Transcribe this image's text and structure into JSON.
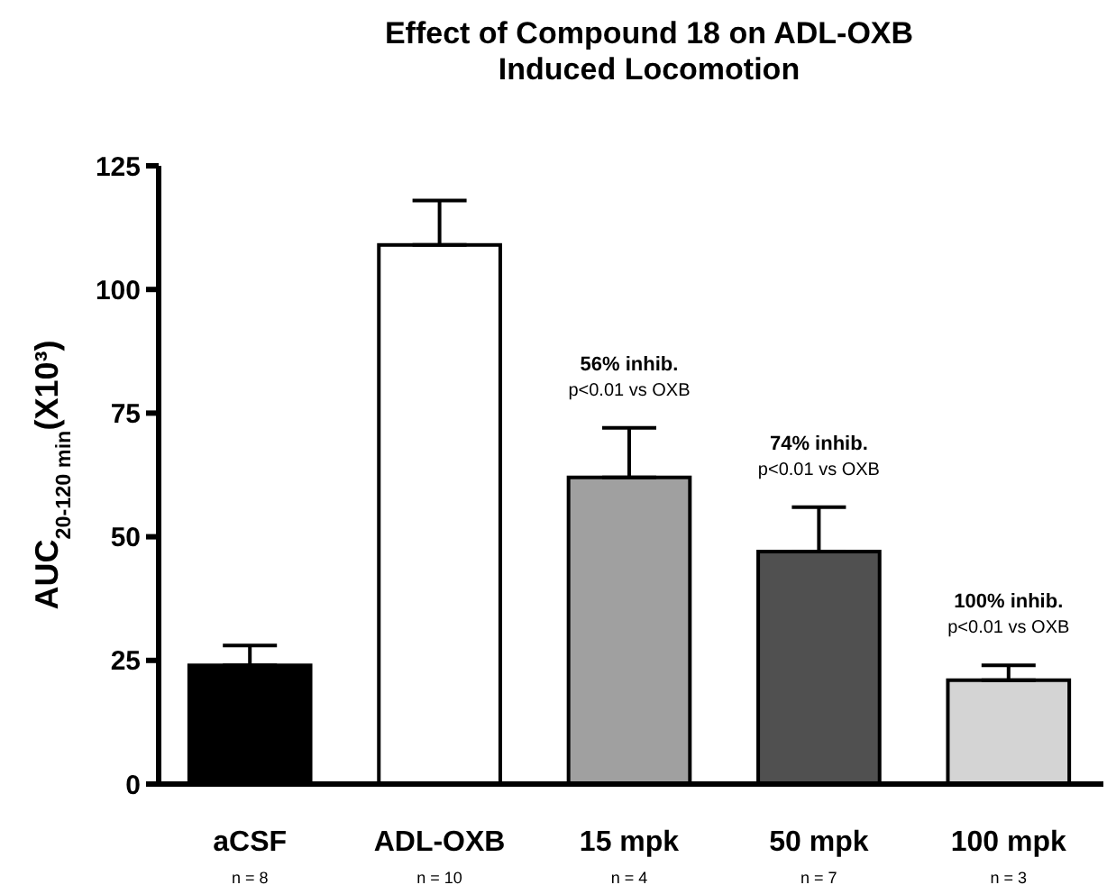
{
  "chart_data": {
    "type": "bar",
    "title": "Effect of Compound 18 on ADL-OXB\nInduced Locomotion",
    "ylabel": "AUC$_{20-120 min}$(X10³)",
    "categories": [
      "aCSF\nn = 8",
      "ADL-OXB\nn = 10",
      "15 mpk\nn = 4",
      "50 mpk\nn = 7",
      "100 mpk\nn = 3"
    ],
    "values": [
      24,
      109,
      62,
      47,
      21
    ],
    "errors": [
      [
        24,
        28
      ],
      [
        109,
        118
      ],
      [
        62,
        72
      ],
      [
        47,
        56
      ],
      [
        21,
        24
      ]
    ],
    "colors": [
      "#000000",
      "#ffffff",
      "#a0a0a0",
      "#505050",
      "#d4d4d4"
    ],
    "ylim": [
      0,
      125
    ],
    "yticks": [
      0,
      25,
      50,
      75,
      100,
      125
    ],
    "grid": false,
    "annotations": [
      {
        "text": "56% inhib.\np<0.01 vs OXB",
        "x": "15 mpk\nn = 4",
        "y": 72
      },
      {
        "text": "74% inhib.\np<0.01 vs OXB",
        "x": "50 mpk\nn = 7",
        "y": 56
      },
      {
        "text": "100% inhib.\np<0.01 vs OXB",
        "x": "100 mpk\nn = 3",
        "y": 24
      }
    ]
  }
}
